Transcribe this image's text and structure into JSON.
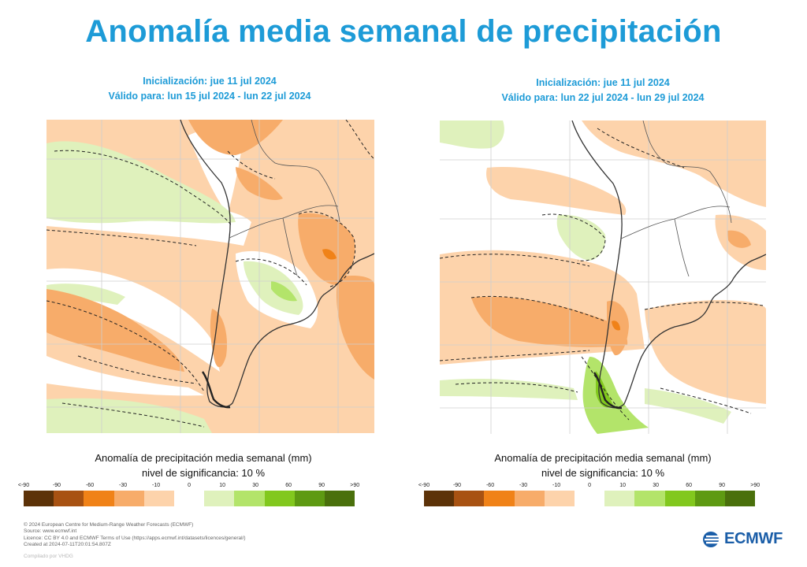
{
  "title": "Anomalía media semanal de precipitación",
  "panels": [
    {
      "init": "Inicialización: jue 11 jul 2024",
      "valid": "Válido para: lun 15 jul 2024 - lun 22 jul 2024"
    },
    {
      "init": "Inicialización: jue 11 jul 2024",
      "valid": "Válido para: lun 22 jul 2024 - lun 29 jul 2024"
    }
  ],
  "caption": {
    "line1": "Anomalía de precipitación media semanal (mm)",
    "line2": "nivel de significancia: 10 %"
  },
  "scale": {
    "ticks": [
      "<-90",
      "-90",
      "-60",
      "-30",
      "-10",
      "0",
      "10",
      "30",
      "60",
      "90",
      ">90"
    ],
    "colors": [
      "#5c3208",
      "#a85212",
      "#f08218",
      "#f7ac6a",
      "#fdd3ab",
      "#ffffff",
      "#dff1bc",
      "#b3e46a",
      "#82c81e",
      "#5e9a12",
      "#4a700c"
    ]
  },
  "footer": {
    "line1": "© 2024 European Centre for Medium-Range Weather Forecasts (ECMWF)",
    "line2": "Source: www.ecmwf.int",
    "line3": "Licence: CC BY 4.0 and ECMWF Terms of Use (https://apps.ecmwf.int/datasets/licences/general/)",
    "line4": "Created at 2024-07-11T20:01:54.807Z"
  },
  "compiled": "Compilado por VHDG",
  "logo": {
    "text": "ECMWF",
    "icon": "ecmwf-logo-icon",
    "color": "#1b5ea8"
  },
  "title_color": "#1d9bd7"
}
